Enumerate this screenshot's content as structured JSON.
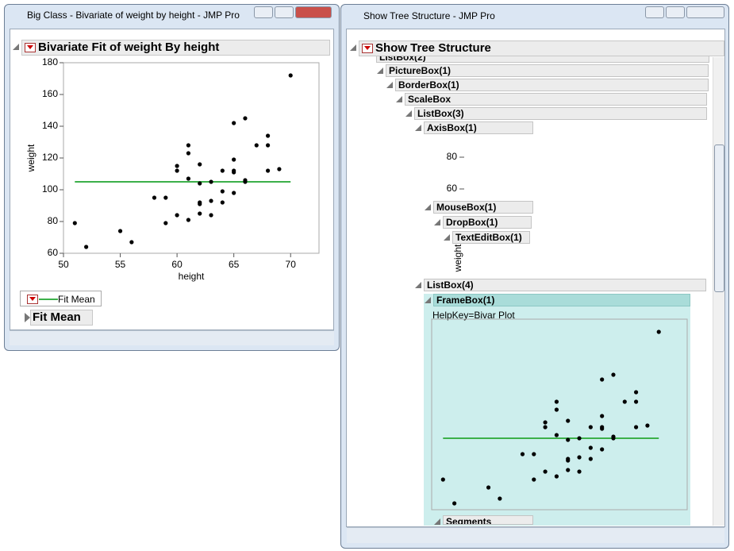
{
  "windows": [
    {
      "title": "Big Class - Bivariate of weight by height - JMP Pro"
    },
    {
      "title": "Show Tree Structure - JMP Pro"
    }
  ],
  "chart_data": {
    "type": "scatter",
    "title": "Bivariate Fit of weight By height",
    "x_label": "height",
    "y_label": "weight",
    "x": [
      51,
      52,
      55,
      56,
      58,
      59,
      59,
      60,
      60,
      60,
      61,
      61,
      61,
      61,
      62,
      62,
      62,
      62,
      62,
      63,
      63,
      63,
      64,
      64,
      64,
      65,
      65,
      65,
      65,
      65,
      66,
      66,
      66,
      67,
      68,
      68,
      68,
      69,
      70
    ],
    "values": [
      79,
      64,
      74,
      67,
      95,
      95,
      79,
      115,
      112,
      84,
      128,
      123,
      107,
      81,
      116,
      104,
      92,
      91,
      85,
      105,
      93,
      84,
      112,
      99,
      92,
      142,
      119,
      112,
      111,
      98,
      145,
      106,
      105,
      128,
      134,
      128,
      112,
      113,
      172
    ],
    "color": "#000000",
    "fit": {
      "name": "Fit Mean",
      "value": 105,
      "color": "#3cb04a"
    },
    "xlim": [
      50,
      72.5
    ],
    "xticks": [
      50,
      55,
      60,
      65,
      70
    ],
    "ylim": [
      60,
      180
    ],
    "yticks": [
      60,
      80,
      100,
      120,
      140,
      160,
      180
    ]
  },
  "tree": {
    "title": "Show Tree Structure",
    "nodes": [
      "ListBox(2)",
      "PictureBox(1)",
      "BorderBox(1)",
      "ScaleBox",
      "ListBox(3)",
      "AxisBox(1)",
      "MouseBox(1)",
      "DropBox(1)",
      "TextEditBox(1)",
      "ListBox(4)",
      "FrameBox(1)",
      "Segments"
    ],
    "helpkey": "HelpKey=Bivar Plot"
  }
}
